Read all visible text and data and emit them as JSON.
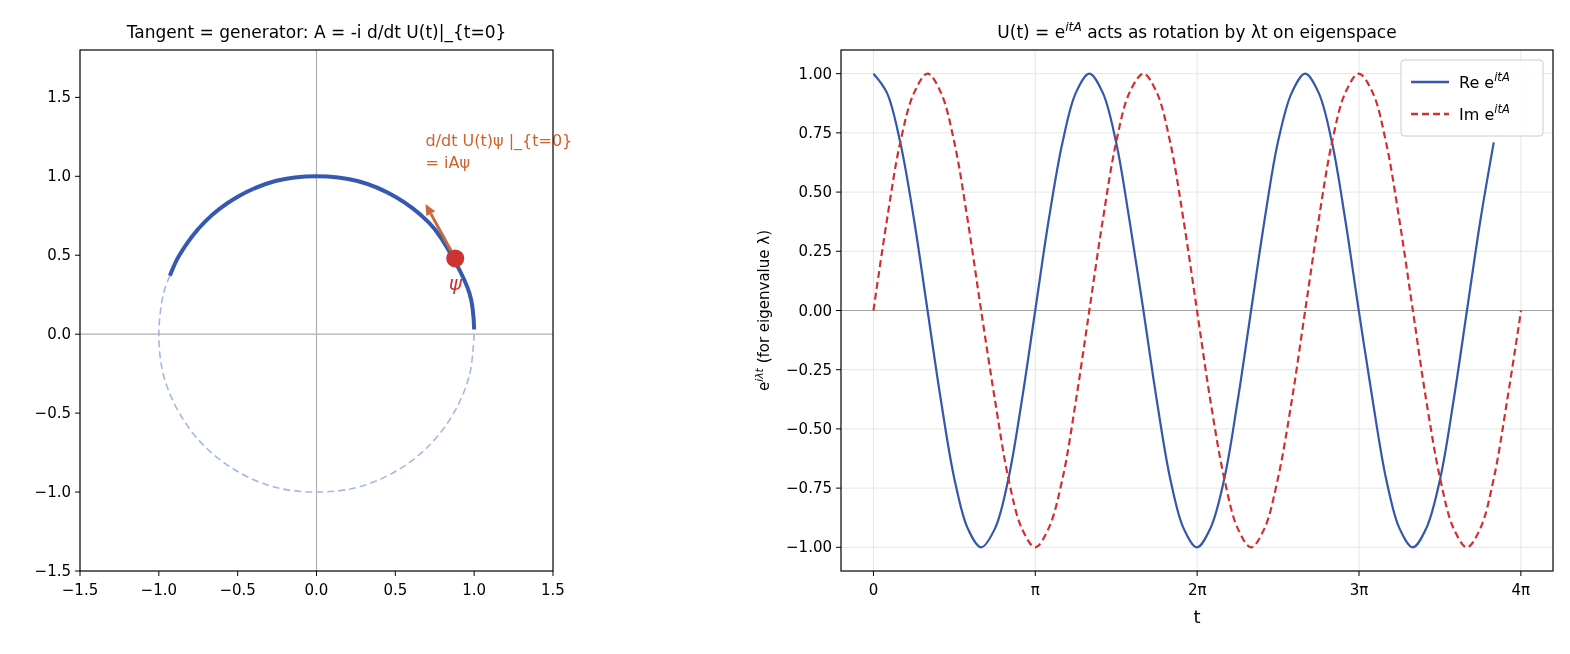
{
  "chart_data": [
    {
      "type": "line",
      "title": "Tangent = generator:  A = -i d/dt U(t)|_{t=0}",
      "xlim": [
        -1.5,
        1.5
      ],
      "ylim": [
        -1.5,
        1.8
      ],
      "xticks": [
        {
          "value": -1.5,
          "label": "−1.5"
        },
        {
          "value": -1,
          "label": "−1.0"
        },
        {
          "value": -0.5,
          "label": "−0.5"
        },
        {
          "value": 0,
          "label": "0.0"
        },
        {
          "value": 0.5,
          "label": "0.5"
        },
        {
          "value": 1,
          "label": "1.0"
        },
        {
          "value": 1.5,
          "label": "1.5"
        }
      ],
      "yticks": [
        {
          "value": -1.5,
          "label": "−1.5"
        },
        {
          "value": -1,
          "label": "−1.0"
        },
        {
          "value": -0.5,
          "label": "−0.5"
        },
        {
          "value": 0,
          "label": "0.0"
        },
        {
          "value": 0.5,
          "label": "0.5"
        },
        {
          "value": 1,
          "label": "1.0"
        },
        {
          "value": 1.5,
          "label": "1.5"
        }
      ],
      "grid": false,
      "legend": false,
      "ref_lines": [
        {
          "axis": "x",
          "value": 0,
          "color": "#b0b0b0"
        },
        {
          "axis": "y",
          "value": 0,
          "color": "#b0b0b0"
        }
      ],
      "series": [
        {
          "color": "#a5b8e0",
          "line_style": "dashed",
          "x": [
            -0.93,
            -0.97,
            -1,
            -0.97,
            -0.87,
            -0.71,
            -0.5,
            -0.26,
            0,
            0.26,
            0.5,
            0.71,
            0.87,
            0.97,
            1
          ],
          "values": [
            0.37,
            0.26,
            0,
            -0.26,
            -0.5,
            -0.71,
            -0.87,
            -0.97,
            -1,
            -0.97,
            -0.87,
            -0.71,
            -0.5,
            -0.26,
            0
          ]
        },
        {
          "color": "#3558b0",
          "line_style": "solid",
          "x": [
            1,
            0.97,
            0.79,
            0.71,
            0.5,
            0.26,
            0,
            -0.26,
            -0.5,
            -0.71,
            -0.87,
            -0.93
          ],
          "values": [
            0.03,
            0.26,
            0.61,
            0.71,
            0.87,
            0.97,
            1,
            0.97,
            0.87,
            0.71,
            0.5,
            0.37
          ]
        },
        {
          "type": "scatter",
          "name": "ψ",
          "color": "#cc3333",
          "x": [
            0.88
          ],
          "values": [
            0.48
          ]
        }
      ],
      "annotations": [
        "d/dt U(t)ψ |_{t=0}\n= iAψ"
      ]
    },
    {
      "type": "line",
      "title": "U(t) = e$^{itA}$ acts as rotation by λt on eigenspace",
      "xlabel": "t",
      "ylabel": "e$^{iλt}$  (for eigenvalue λ)",
      "xlim": [
        -0.63,
        13.19
      ],
      "ylim": [
        -1.1,
        1.1
      ],
      "xticks": [
        {
          "value": 0,
          "label": "0"
        },
        {
          "value": 3.1416,
          "label": "π"
        },
        {
          "value": 6.2832,
          "label": "2π"
        },
        {
          "value": 9.4248,
          "label": "3π"
        },
        {
          "value": 12.5664,
          "label": "4π"
        }
      ],
      "yticks": [
        {
          "value": -1,
          "label": "−1.00"
        },
        {
          "value": -0.75,
          "label": "−0.75"
        },
        {
          "value": -0.5,
          "label": "−0.50"
        },
        {
          "value": -0.25,
          "label": "−0.25"
        },
        {
          "value": 0,
          "label": "0.00"
        },
        {
          "value": 0.25,
          "label": "0.25"
        },
        {
          "value": 0.5,
          "label": "0.50"
        },
        {
          "value": 0.75,
          "label": "0.75"
        },
        {
          "value": 1,
          "label": "1.00"
        }
      ],
      "grid": true,
      "legend": "top right",
      "ref_lines": [
        {
          "axis": "y",
          "value": 0,
          "color": "#a0a0a0"
        }
      ],
      "x": [
        0,
        0.26,
        0.52,
        0.79,
        1.05,
        1.31,
        1.57,
        1.83,
        2.09,
        2.36,
        2.62,
        2.88,
        3.14,
        3.4,
        3.67,
        3.93,
        4.19,
        4.45,
        4.71,
        4.97,
        5.24,
        5.5,
        5.76,
        6.02,
        6.28,
        6.54,
        6.81,
        7.07,
        7.33,
        7.59,
        7.85,
        8.12,
        8.38,
        8.64,
        8.9,
        9.16,
        9.42,
        9.69,
        9.95,
        10.21,
        10.47,
        10.73,
        11,
        11.26,
        11.52,
        11.78,
        12.04,
        12.3,
        12.57
      ],
      "series": [
        {
          "name": "Re e$^{itA}$",
          "color": "#3556ad",
          "line_style": "solid",
          "values": [
            1,
            0.92,
            0.71,
            0.38,
            0,
            -0.38,
            -0.71,
            -0.92,
            -1,
            -0.92,
            -0.71,
            -0.38,
            0,
            0.38,
            0.71,
            0.92,
            1,
            0.92,
            0.71,
            0.38,
            0,
            -0.38,
            -0.71,
            -0.92,
            -1,
            -0.92,
            -0.71,
            -0.38,
            0,
            0.38,
            0.71,
            0.92,
            1,
            0.92,
            0.71,
            0.38,
            0,
            -0.38,
            -0.71,
            -0.92,
            -1,
            -0.92,
            -0.71,
            -0.38,
            0,
            0.38,
            0.71,
            null,
            null
          ]
        },
        {
          "name": "Im e$^{itA}$",
          "color": "#d03030",
          "line_style": "dashed",
          "values": [
            0,
            0.38,
            0.71,
            0.92,
            1,
            0.92,
            0.71,
            0.38,
            0,
            -0.38,
            -0.71,
            -0.92,
            -1,
            -0.92,
            -0.71,
            -0.38,
            0,
            0.38,
            0.71,
            0.92,
            1,
            0.92,
            0.71,
            0.38,
            0,
            -0.38,
            -0.71,
            -0.92,
            -1,
            -0.92,
            -0.71,
            -0.38,
            0,
            0.38,
            0.71,
            0.92,
            1,
            0.92,
            0.71,
            0.38,
            0,
            -0.38,
            -0.71,
            -0.92,
            -1,
            -0.92,
            -0.71,
            -0.38,
            0
          ]
        }
      ]
    }
  ]
}
